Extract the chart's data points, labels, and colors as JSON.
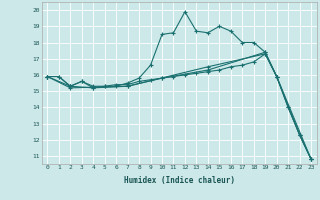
{
  "xlabel": "Humidex (Indice chaleur)",
  "ylabel": "",
  "bg_color": "#cde8e8",
  "grid_color": "#ffffff",
  "line_color": "#1a7070",
  "xlim": [
    -0.5,
    23.5
  ],
  "ylim": [
    10.5,
    20.5
  ],
  "yticks": [
    11,
    12,
    13,
    14,
    15,
    16,
    17,
    18,
    19,
    20
  ],
  "xticks": [
    0,
    1,
    2,
    3,
    4,
    5,
    6,
    7,
    8,
    9,
    10,
    11,
    12,
    13,
    14,
    15,
    16,
    17,
    18,
    19,
    20,
    21,
    22,
    23
  ],
  "series1": [
    [
      0,
      15.9
    ],
    [
      1,
      15.9
    ],
    [
      2,
      15.3
    ],
    [
      3,
      15.6
    ],
    [
      4,
      15.2
    ],
    [
      5,
      15.3
    ],
    [
      6,
      15.3
    ],
    [
      7,
      15.5
    ],
    [
      8,
      15.8
    ],
    [
      9,
      16.6
    ],
    [
      10,
      18.5
    ],
    [
      11,
      18.6
    ],
    [
      12,
      19.9
    ],
    [
      13,
      18.7
    ],
    [
      14,
      18.6
    ],
    [
      15,
      19.0
    ],
    [
      16,
      18.7
    ],
    [
      17,
      18.0
    ],
    [
      18,
      18.0
    ],
    [
      19,
      17.4
    ],
    [
      20,
      15.9
    ],
    [
      21,
      14.0
    ],
    [
      22,
      12.3
    ],
    [
      23,
      10.8
    ]
  ],
  "series2": [
    [
      0,
      15.9
    ],
    [
      1,
      15.9
    ],
    [
      2,
      15.3
    ],
    [
      3,
      15.6
    ],
    [
      4,
      15.3
    ],
    [
      5,
      15.3
    ],
    [
      6,
      15.4
    ],
    [
      7,
      15.4
    ],
    [
      8,
      15.6
    ],
    [
      9,
      15.7
    ],
    [
      10,
      15.8
    ],
    [
      11,
      15.9
    ],
    [
      12,
      16.0
    ],
    [
      13,
      16.1
    ],
    [
      14,
      16.2
    ],
    [
      15,
      16.3
    ],
    [
      16,
      16.5
    ],
    [
      17,
      16.6
    ],
    [
      18,
      16.8
    ],
    [
      19,
      17.3
    ],
    [
      20,
      15.9
    ],
    [
      21,
      14.0
    ],
    [
      22,
      12.3
    ],
    [
      23,
      10.8
    ]
  ],
  "series3": [
    [
      0,
      15.9
    ],
    [
      2,
      15.3
    ],
    [
      4,
      15.2
    ],
    [
      7,
      15.3
    ],
    [
      10,
      15.8
    ],
    [
      14,
      16.3
    ],
    [
      19,
      17.4
    ],
    [
      20,
      15.9
    ],
    [
      23,
      10.8
    ]
  ],
  "series4": [
    [
      0,
      15.9
    ],
    [
      2,
      15.2
    ],
    [
      7,
      15.3
    ],
    [
      14,
      16.5
    ],
    [
      19,
      17.3
    ],
    [
      20,
      15.9
    ],
    [
      22,
      12.3
    ],
    [
      23,
      10.8
    ]
  ]
}
